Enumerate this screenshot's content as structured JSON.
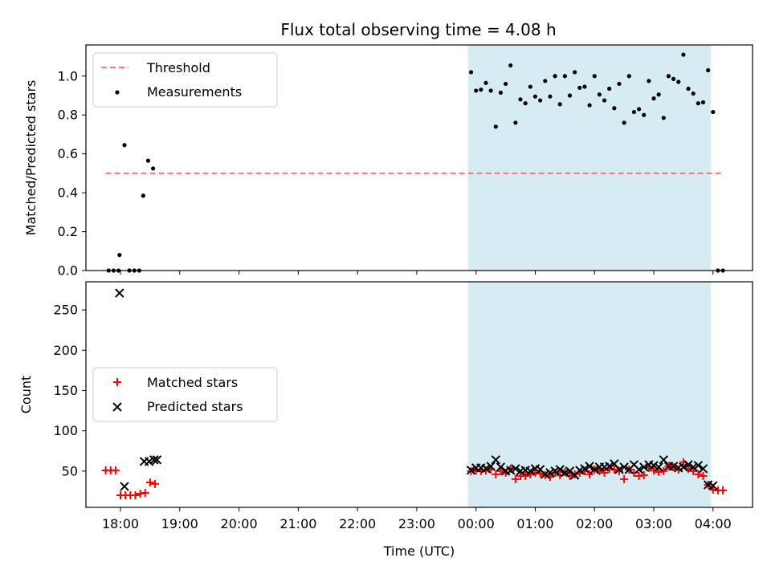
{
  "chart_data": {
    "type": "scatter",
    "title": "Flux total observing time = 4.08 h",
    "x_unit": "hours after 00:00 UTC (negative = previous evening)",
    "xlim": [
      "17:25",
      "04:40"
    ],
    "xlabel": "Time (UTC)",
    "xticks": [
      "18:00",
      "19:00",
      "20:00",
      "21:00",
      "22:00",
      "23:00",
      "00:00",
      "01:00",
      "02:00",
      "03:00",
      "04:00"
    ],
    "shaded_interval": [
      "23:52",
      "03:58"
    ],
    "shade_color": "#add8e6",
    "panels": [
      {
        "ylabel": "Matched/Predicted stars",
        "ylim": [
          0,
          1.16
        ],
        "yticks": [
          "0.0",
          "0.2",
          "0.4",
          "0.6",
          "0.8",
          "1.0"
        ],
        "legend": {
          "placement": "upper-left",
          "entries": [
            "Threshold",
            "Measurements"
          ]
        },
        "threshold": {
          "name": "Threshold",
          "y": 0.5,
          "x_range": [
            "17:45",
            "04:10"
          ],
          "color": "#ff7777",
          "style": "dashed"
        },
        "series": [
          {
            "name": "Measurements",
            "marker": "dot",
            "color": "#000000",
            "points": [
              [
                "17:48",
                0
              ],
              [
                "17:53",
                0
              ],
              [
                "17:58",
                0
              ],
              [
                "17:59",
                0.08
              ],
              [
                "18:04",
                0.645
              ],
              [
                "18:09",
                0
              ],
              [
                "18:14",
                0
              ],
              [
                "18:19",
                0
              ],
              [
                "18:23",
                0.385
              ],
              [
                "18:28",
                0.565
              ],
              [
                "18:33",
                0.525
              ],
              [
                "23:55",
                1.02
              ],
              [
                "00:00",
                0.925
              ],
              [
                "00:05",
                0.93
              ],
              [
                "00:10",
                0.965
              ],
              [
                "00:15",
                0.925
              ],
              [
                "00:20",
                0.74
              ],
              [
                "00:25",
                0.915
              ],
              [
                "00:30",
                0.96
              ],
              [
                "00:35",
                1.055
              ],
              [
                "00:40",
                0.76
              ],
              [
                "00:45",
                0.88
              ],
              [
                "00:50",
                0.86
              ],
              [
                "00:55",
                0.945
              ],
              [
                "01:00",
                0.895
              ],
              [
                "01:05",
                0.875
              ],
              [
                "01:10",
                0.975
              ],
              [
                "01:15",
                0.895
              ],
              [
                "01:20",
                1.0
              ],
              [
                "01:25",
                0.855
              ],
              [
                "01:30",
                1.0
              ],
              [
                "01:35",
                0.9
              ],
              [
                "01:40",
                1.02
              ],
              [
                "01:45",
                0.94
              ],
              [
                "01:50",
                0.945
              ],
              [
                "01:55",
                0.85
              ],
              [
                "02:00",
                1.0
              ],
              [
                "02:05",
                0.905
              ],
              [
                "02:10",
                0.875
              ],
              [
                "02:15",
                0.935
              ],
              [
                "02:20",
                0.835
              ],
              [
                "02:25",
                0.96
              ],
              [
                "02:30",
                0.76
              ],
              [
                "02:35",
                1.0
              ],
              [
                "02:40",
                0.815
              ],
              [
                "02:45",
                0.83
              ],
              [
                "02:50",
                0.8
              ],
              [
                "02:55",
                0.975
              ],
              [
                "03:00",
                0.885
              ],
              [
                "03:05",
                0.905
              ],
              [
                "03:10",
                0.785
              ],
              [
                "03:15",
                1.0
              ],
              [
                "03:20",
                0.985
              ],
              [
                "03:25",
                0.97
              ],
              [
                "03:30",
                1.11
              ],
              [
                "03:35",
                0.935
              ],
              [
                "03:40",
                0.91
              ],
              [
                "03:45",
                0.86
              ],
              [
                "03:50",
                0.865
              ],
              [
                "03:55",
                1.03
              ],
              [
                "04:00",
                0.815
              ],
              [
                "04:05",
                0
              ],
              [
                "04:10",
                0
              ]
            ]
          }
        ]
      },
      {
        "ylabel": "Count",
        "ylim": [
          5,
          285
        ],
        "yticks": [
          "50",
          "100",
          "150",
          "200",
          "250"
        ],
        "legend": {
          "placement": "center-left",
          "entries": [
            "Matched stars",
            "Predicted stars"
          ]
        },
        "series": [
          {
            "name": "Matched stars",
            "marker": "plus",
            "color": "#ff0000",
            "points": [
              [
                "17:45",
                51
              ],
              [
                "17:50",
                51
              ],
              [
                "17:55",
                51
              ],
              [
                "18:00",
                20
              ],
              [
                "18:05",
                20
              ],
              [
                "18:10",
                20
              ],
              [
                "18:15",
                20
              ],
              [
                "18:20",
                22
              ],
              [
                "18:25",
                23
              ],
              [
                "18:30",
                36
              ],
              [
                "18:35",
                34
              ],
              [
                "23:55",
                50
              ],
              [
                "00:00",
                51
              ],
              [
                "00:05",
                50
              ],
              [
                "00:10",
                51
              ],
              [
                "00:15",
                52
              ],
              [
                "00:20",
                46
              ],
              [
                "00:25",
                50
              ],
              [
                "00:30",
                48
              ],
              [
                "00:35",
                53
              ],
              [
                "00:40",
                40
              ],
              [
                "00:45",
                44
              ],
              [
                "00:50",
                44
              ],
              [
                "00:55",
                46
              ],
              [
                "01:00",
                48
              ],
              [
                "01:05",
                47
              ],
              [
                "01:10",
                45
              ],
              [
                "01:15",
                43
              ],
              [
                "01:20",
                48
              ],
              [
                "01:25",
                45
              ],
              [
                "01:30",
                49
              ],
              [
                "01:35",
                44
              ],
              [
                "01:40",
                46
              ],
              [
                "01:45",
                48
              ],
              [
                "01:50",
                50
              ],
              [
                "01:55",
                46
              ],
              [
                "02:00",
                52
              ],
              [
                "02:05",
                50
              ],
              [
                "02:10",
                48
              ],
              [
                "02:15",
                53
              ],
              [
                "02:20",
                52
              ],
              [
                "02:25",
                50
              ],
              [
                "02:30",
                40
              ],
              [
                "02:35",
                52
              ],
              [
                "02:40",
                48
              ],
              [
                "02:45",
                44
              ],
              [
                "02:50",
                45
              ],
              [
                "02:55",
                54
              ],
              [
                "03:00",
                51
              ],
              [
                "03:05",
                49
              ],
              [
                "03:10",
                50
              ],
              [
                "03:15",
                56
              ],
              [
                "03:20",
                55
              ],
              [
                "03:25",
                52
              ],
              [
                "03:30",
                61
              ],
              [
                "03:35",
                53
              ],
              [
                "03:40",
                50
              ],
              [
                "03:45",
                46
              ],
              [
                "03:50",
                44
              ],
              [
                "03:55",
                33
              ],
              [
                "04:00",
                27
              ],
              [
                "04:05",
                26
              ],
              [
                "04:10",
                26
              ]
            ]
          },
          {
            "name": "Predicted stars",
            "marker": "x",
            "color": "#000000",
            "points": [
              [
                "17:59",
                271
              ],
              [
                "18:04",
                31
              ],
              [
                "18:24",
                62
              ],
              [
                "18:29",
                62
              ],
              [
                "18:34",
                64
              ],
              [
                "18:37",
                64
              ],
              [
                "23:55",
                51
              ],
              [
                "00:00",
                54
              ],
              [
                "00:05",
                54
              ],
              [
                "00:10",
                53
              ],
              [
                "00:15",
                56
              ],
              [
                "00:20",
                64
              ],
              [
                "00:25",
                55
              ],
              [
                "00:30",
                50
              ],
              [
                "00:35",
                51
              ],
              [
                "00:40",
                53
              ],
              [
                "00:45",
                50
              ],
              [
                "00:50",
                51
              ],
              [
                "00:55",
                50
              ],
              [
                "01:00",
                53
              ],
              [
                "01:05",
                52
              ],
              [
                "01:10",
                46
              ],
              [
                "01:15",
                48
              ],
              [
                "01:20",
                50
              ],
              [
                "01:25",
                52
              ],
              [
                "01:30",
                48
              ],
              [
                "01:35",
                50
              ],
              [
                "01:40",
                45
              ],
              [
                "01:45",
                51
              ],
              [
                "01:50",
                53
              ],
              [
                "01:55",
                56
              ],
              [
                "02:00",
                52
              ],
              [
                "02:05",
                55
              ],
              [
                "02:10",
                55
              ],
              [
                "02:15",
                56
              ],
              [
                "02:20",
                59
              ],
              [
                "02:25",
                52
              ],
              [
                "02:30",
                55
              ],
              [
                "02:35",
                52
              ],
              [
                "02:40",
                58
              ],
              [
                "02:45",
                52
              ],
              [
                "02:50",
                55
              ],
              [
                "02:55",
                58
              ],
              [
                "03:00",
                57
              ],
              [
                "03:05",
                55
              ],
              [
                "03:10",
                64
              ],
              [
                "03:15",
                56
              ],
              [
                "03:20",
                56
              ],
              [
                "03:25",
                54
              ],
              [
                "03:30",
                55
              ],
              [
                "03:35",
                58
              ],
              [
                "03:40",
                55
              ],
              [
                "03:45",
                57
              ],
              [
                "03:50",
                53
              ],
              [
                "03:55",
                33
              ],
              [
                "04:00",
                32
              ]
            ]
          }
        ]
      }
    ]
  }
}
